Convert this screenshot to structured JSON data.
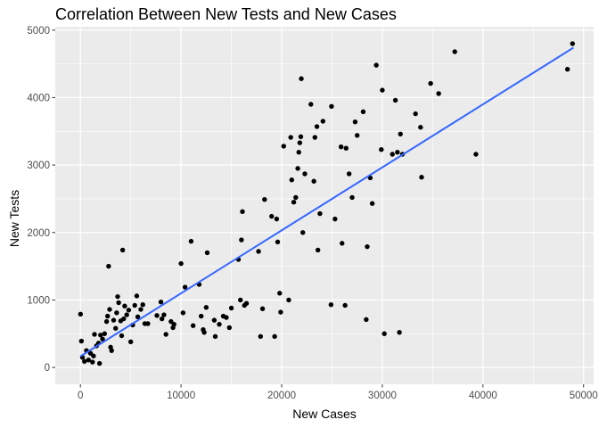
{
  "chart_data": {
    "type": "scatter",
    "title": "Correlation Between New Tests and New Cases",
    "xlabel": "New Cases",
    "ylabel": "New Tests",
    "xlim": [
      -2500,
      51000
    ],
    "ylim": [
      -250,
      5050
    ],
    "xticks": [
      0,
      10000,
      20000,
      30000,
      40000,
      50000
    ],
    "xtick_labels": [
      "0",
      "10000",
      "20000",
      "30000",
      "40000",
      "50000"
    ],
    "yticks": [
      0,
      1000,
      2000,
      3000,
      4000,
      5000
    ],
    "ytick_labels": [
      "0",
      "1000",
      "2000",
      "3000",
      "4000",
      "5000"
    ],
    "grid": true,
    "background": "#ebebeb",
    "point_color": "#000000",
    "trend_color": "#3366ff",
    "trend_line": {
      "x": [
        0,
        49000
      ],
      "y": [
        165,
        4740
      ]
    },
    "series": [
      {
        "points": [
          [
            10,
            790
          ],
          [
            100,
            390
          ],
          [
            200,
            150
          ],
          [
            400,
            90
          ],
          [
            600,
            250
          ],
          [
            800,
            110
          ],
          [
            1000,
            210
          ],
          [
            1200,
            80
          ],
          [
            1300,
            170
          ],
          [
            1400,
            490
          ],
          [
            1600,
            320
          ],
          [
            1800,
            360
          ],
          [
            1900,
            60
          ],
          [
            2000,
            480
          ],
          [
            2200,
            420
          ],
          [
            2400,
            500
          ],
          [
            2600,
            680
          ],
          [
            2700,
            760
          ],
          [
            2800,
            1500
          ],
          [
            2900,
            860
          ],
          [
            3000,
            300
          ],
          [
            3100,
            250
          ],
          [
            3300,
            700
          ],
          [
            3500,
            580
          ],
          [
            3600,
            810
          ],
          [
            3700,
            1050
          ],
          [
            3800,
            960
          ],
          [
            4000,
            690
          ],
          [
            4100,
            470
          ],
          [
            4200,
            1740
          ],
          [
            4300,
            720
          ],
          [
            4400,
            910
          ],
          [
            4600,
            780
          ],
          [
            4800,
            850
          ],
          [
            5000,
            380
          ],
          [
            5200,
            630
          ],
          [
            5400,
            920
          ],
          [
            5600,
            1060
          ],
          [
            5700,
            750
          ],
          [
            6000,
            860
          ],
          [
            6200,
            930
          ],
          [
            6400,
            650
          ],
          [
            6700,
            650
          ],
          [
            7600,
            770
          ],
          [
            8000,
            970
          ],
          [
            8100,
            720
          ],
          [
            8300,
            780
          ],
          [
            8500,
            490
          ],
          [
            9000,
            680
          ],
          [
            9200,
            590
          ],
          [
            9300,
            640
          ],
          [
            10000,
            1540
          ],
          [
            10200,
            810
          ],
          [
            10400,
            1190
          ],
          [
            11000,
            1870
          ],
          [
            11200,
            620
          ],
          [
            11800,
            1230
          ],
          [
            12000,
            760
          ],
          [
            12200,
            560
          ],
          [
            12300,
            520
          ],
          [
            12500,
            890
          ],
          [
            12600,
            1700
          ],
          [
            13300,
            700
          ],
          [
            13400,
            460
          ],
          [
            13800,
            640
          ],
          [
            14200,
            760
          ],
          [
            14500,
            740
          ],
          [
            14800,
            590
          ],
          [
            15000,
            880
          ],
          [
            15700,
            1600
          ],
          [
            15900,
            1000
          ],
          [
            16000,
            1890
          ],
          [
            16100,
            2310
          ],
          [
            16300,
            920
          ],
          [
            16500,
            950
          ],
          [
            17700,
            1720
          ],
          [
            17900,
            460
          ],
          [
            18100,
            870
          ],
          [
            18300,
            2490
          ],
          [
            19000,
            2240
          ],
          [
            19300,
            460
          ],
          [
            19500,
            2200
          ],
          [
            19600,
            1860
          ],
          [
            19800,
            1100
          ],
          [
            19900,
            820
          ],
          [
            20200,
            3280
          ],
          [
            20700,
            1000
          ],
          [
            20900,
            3410
          ],
          [
            21000,
            2780
          ],
          [
            21200,
            2450
          ],
          [
            21400,
            2520
          ],
          [
            21600,
            2950
          ],
          [
            21700,
            3190
          ],
          [
            21800,
            3330
          ],
          [
            21900,
            3420
          ],
          [
            21950,
            4280
          ],
          [
            22100,
            2000
          ],
          [
            22300,
            2870
          ],
          [
            22900,
            3900
          ],
          [
            23200,
            2760
          ],
          [
            23300,
            3410
          ],
          [
            23500,
            3570
          ],
          [
            23600,
            1740
          ],
          [
            23800,
            2280
          ],
          [
            24100,
            3650
          ],
          [
            24900,
            930
          ],
          [
            24950,
            3870
          ],
          [
            25300,
            2200
          ],
          [
            25900,
            3270
          ],
          [
            26000,
            1840
          ],
          [
            26300,
            920
          ],
          [
            26400,
            3250
          ],
          [
            26700,
            2870
          ],
          [
            27000,
            2520
          ],
          [
            27300,
            3640
          ],
          [
            27500,
            3440
          ],
          [
            28100,
            3790
          ],
          [
            28400,
            710
          ],
          [
            28500,
            1790
          ],
          [
            28800,
            2810
          ],
          [
            29000,
            2430
          ],
          [
            29400,
            4480
          ],
          [
            29900,
            3230
          ],
          [
            30000,
            4110
          ],
          [
            30200,
            500
          ],
          [
            31000,
            3160
          ],
          [
            31300,
            3960
          ],
          [
            31500,
            3190
          ],
          [
            31700,
            520
          ],
          [
            31800,
            3460
          ],
          [
            32000,
            3160
          ],
          [
            33300,
            3760
          ],
          [
            33800,
            3560
          ],
          [
            33900,
            2820
          ],
          [
            34800,
            4210
          ],
          [
            35600,
            4060
          ],
          [
            37200,
            4680
          ],
          [
            39300,
            3160
          ],
          [
            48400,
            4420
          ],
          [
            48900,
            4800
          ]
        ]
      }
    ]
  }
}
